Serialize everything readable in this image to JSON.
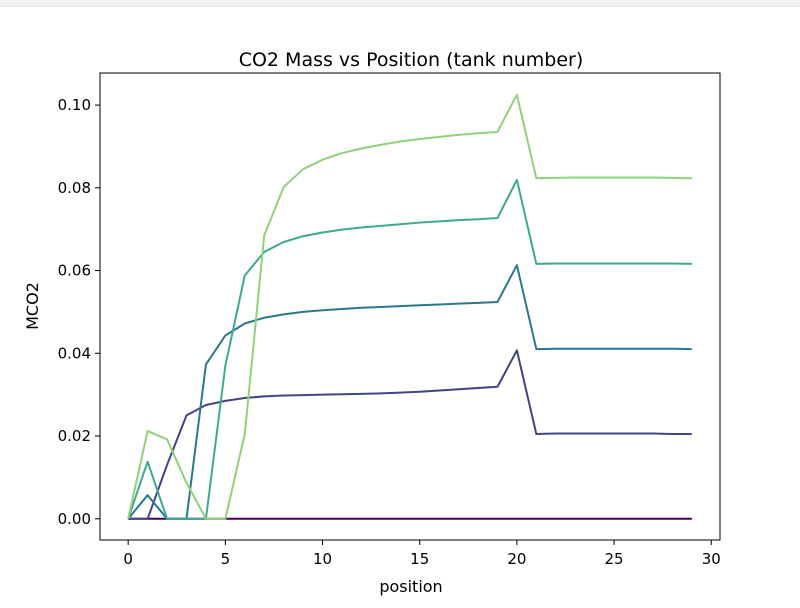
{
  "chart_data": {
    "type": "line",
    "title": "CO2 Mass vs Position (tank number)",
    "xlabel": "position",
    "ylabel": "MCO2",
    "xlim": [
      -1.45,
      30.45
    ],
    "ylim": [
      -0.00513,
      0.10775
    ],
    "xticks": [
      0,
      5,
      10,
      15,
      20,
      25,
      30
    ],
    "yticks": [
      0.0,
      0.02,
      0.04,
      0.06,
      0.08,
      0.1
    ],
    "ytick_labels": [
      "0.00",
      "0.02",
      "0.04",
      "0.06",
      "0.08",
      "0.10"
    ],
    "grid": false,
    "x": [
      0,
      1,
      2,
      3,
      4,
      5,
      6,
      7,
      8,
      9,
      10,
      11,
      12,
      13,
      14,
      15,
      16,
      17,
      18,
      19,
      20,
      21,
      22,
      23,
      24,
      25,
      26,
      27,
      28,
      29
    ],
    "series": [
      {
        "color": "#440154",
        "values": [
          0,
          0,
          0,
          0,
          0,
          0,
          0,
          0,
          0,
          0,
          0,
          0,
          0,
          0,
          0,
          0,
          0,
          0,
          0,
          0,
          0,
          0,
          0,
          0,
          0,
          0,
          0,
          0,
          0,
          0
        ]
      },
      {
        "color": "#414487",
        "values": [
          0,
          0,
          0.013,
          0.025,
          0.0275,
          0.0285,
          0.0292,
          0.0296,
          0.0298,
          0.0299,
          0.03,
          0.0301,
          0.0302,
          0.0303,
          0.0305,
          0.0307,
          0.031,
          0.0313,
          0.0316,
          0.0319,
          0.0407,
          0.0205,
          0.0206,
          0.0206,
          0.0206,
          0.0206,
          0.0206,
          0.0206,
          0.0205,
          0.0205
        ]
      },
      {
        "color": "#2a788e",
        "values": [
          0,
          0.0057,
          0,
          0,
          0.0373,
          0.0443,
          0.0472,
          0.0486,
          0.0494,
          0.05,
          0.0504,
          0.0507,
          0.051,
          0.0512,
          0.0514,
          0.0516,
          0.0518,
          0.052,
          0.0522,
          0.0524,
          0.0613,
          0.041,
          0.0411,
          0.0411,
          0.0411,
          0.0411,
          0.0411,
          0.0411,
          0.0411,
          0.041
        ]
      },
      {
        "color": "#3ea98f",
        "values": [
          0,
          0.0138,
          0,
          0,
          0,
          0.037,
          0.0588,
          0.0645,
          0.0669,
          0.0683,
          0.0692,
          0.0699,
          0.0704,
          0.0708,
          0.0712,
          0.0716,
          0.0719,
          0.0722,
          0.0724,
          0.0727,
          0.0819,
          0.0616,
          0.0617,
          0.0617,
          0.0617,
          0.0617,
          0.0617,
          0.0617,
          0.0617,
          0.0616
        ]
      },
      {
        "color": "#8fd27a",
        "values": [
          0,
          0.0212,
          0.0192,
          0.0087,
          0,
          0,
          0.0205,
          0.0685,
          0.0802,
          0.0845,
          0.0868,
          0.0884,
          0.0895,
          0.0904,
          0.0912,
          0.0918,
          0.0923,
          0.0928,
          0.0932,
          0.0935,
          0.1025,
          0.0823,
          0.0824,
          0.0825,
          0.0825,
          0.0825,
          0.0825,
          0.0825,
          0.0824,
          0.0823
        ]
      }
    ]
  }
}
